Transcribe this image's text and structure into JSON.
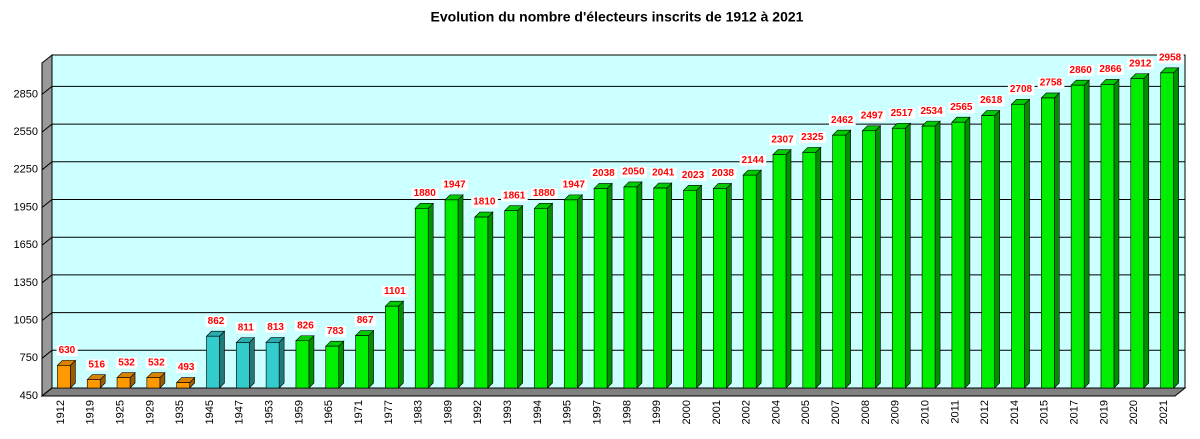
{
  "chart_data": {
    "type": "bar",
    "title": "Evolution du nombre d'électeurs inscrits de 1912 à 2021",
    "categories": [
      "1912",
      "1919",
      "1925",
      "1929",
      "1935",
      "1945",
      "1947",
      "1953",
      "1959",
      "1965",
      "1971",
      "1977",
      "1983",
      "1989",
      "1992",
      "1993",
      "1994",
      "1995",
      "1997",
      "1998",
      "1999",
      "2000",
      "2001",
      "2002",
      "2004",
      "2005",
      "2007",
      "2008",
      "2009",
      "2010",
      "2011",
      "2012",
      "2014",
      "2015",
      "2017",
      "2019",
      "2020",
      "2021"
    ],
    "values": [
      630,
      516,
      532,
      532,
      493,
      862,
      811,
      813,
      826,
      783,
      867,
      1101,
      1880,
      1947,
      1810,
      1861,
      1880,
      1947,
      2038,
      2050,
      2041,
      2023,
      2038,
      2144,
      2307,
      2325,
      2462,
      2497,
      2517,
      2534,
      2565,
      2618,
      2708,
      2758,
      2860,
      2866,
      2912,
      2958
    ],
    "colors": [
      "#ff9900",
      "#ff9900",
      "#ff9900",
      "#ff9900",
      "#ff9900",
      "#33cccc",
      "#33cccc",
      "#33cccc",
      "#00ee00",
      "#00ee00",
      "#00ee00",
      "#00ee00",
      "#00ee00",
      "#00ee00",
      "#00ee00",
      "#00ee00",
      "#00ee00",
      "#00ee00",
      "#00ee00",
      "#00ee00",
      "#00ee00",
      "#00ee00",
      "#00ee00",
      "#00ee00",
      "#00ee00",
      "#00ee00",
      "#00ee00",
      "#00ee00",
      "#00ee00",
      "#00ee00",
      "#00ee00",
      "#00ee00",
      "#00ee00",
      "#00ee00",
      "#00ee00",
      "#00ee00",
      "#00ee00",
      "#00ee00"
    ],
    "ylim": [
      450,
      3100
    ],
    "yticks": [
      450,
      750,
      1050,
      1350,
      1650,
      1950,
      2250,
      2550,
      2850
    ],
    "grid": true
  }
}
